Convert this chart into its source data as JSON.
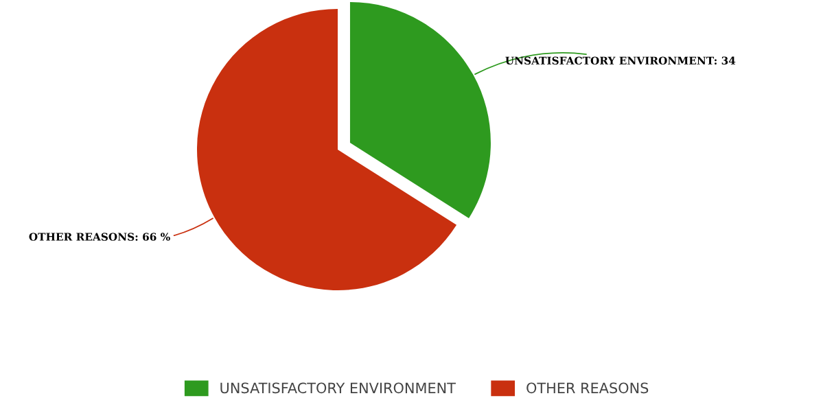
{
  "chart_data": {
    "type": "pie",
    "categories": [
      "UNSATISFACTORY ENVIRONMENT",
      "OTHER REASONS"
    ],
    "values": [
      34,
      66
    ],
    "value_labels": [
      "UNSATISFACTORY ENVIRONMENT: 34",
      "OTHER REASONS: 66 %"
    ],
    "colors": [
      "#2e9a1f",
      "#c9300f"
    ],
    "legend": "bottom"
  }
}
